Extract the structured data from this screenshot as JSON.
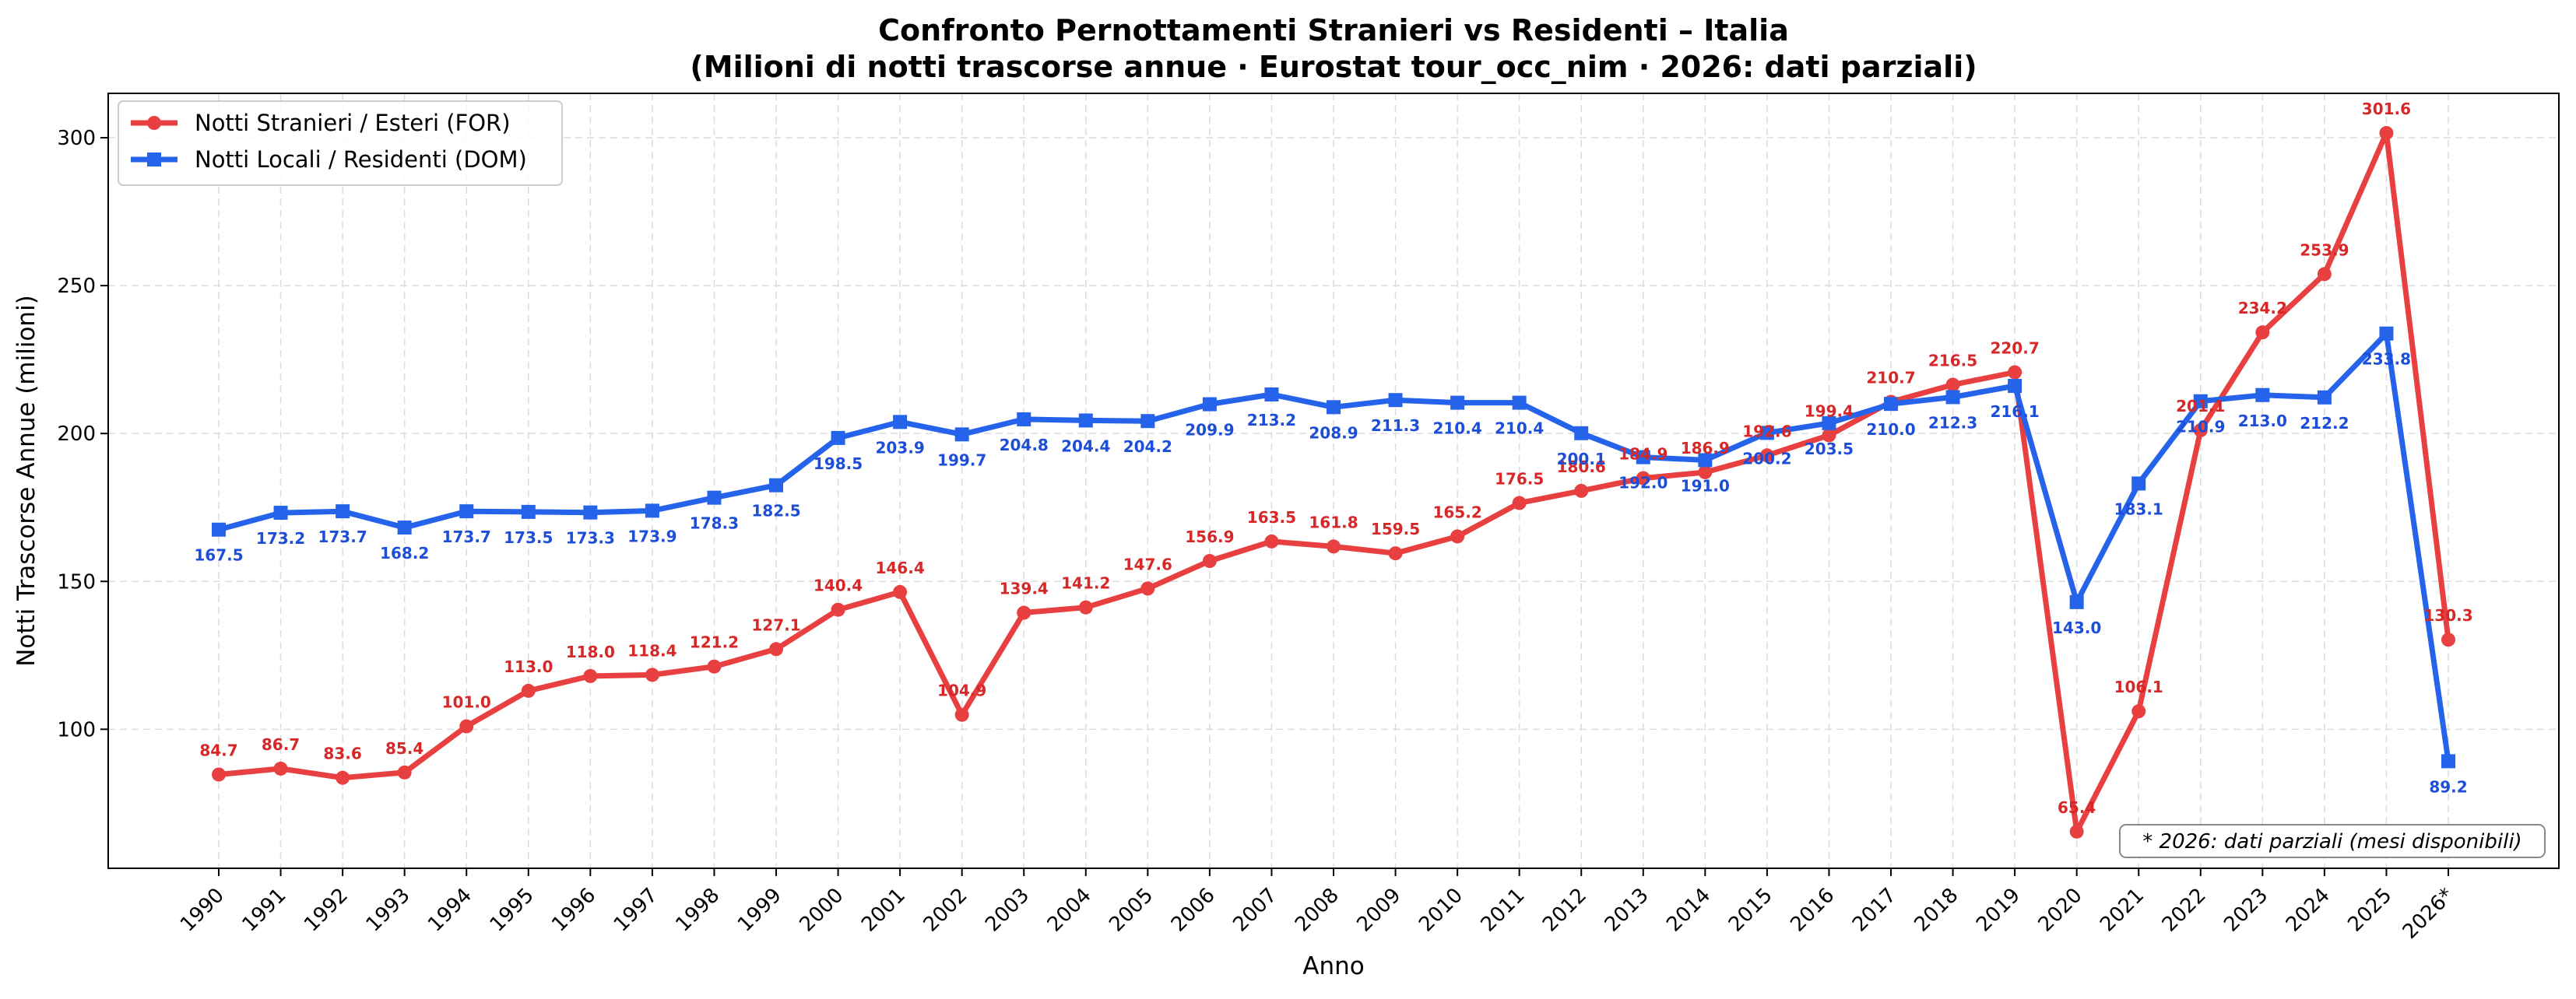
{
  "chart_data": {
    "type": "line",
    "title": "Confronto Pernottamenti Stranieri vs Residenti – Italia",
    "subtitle": "(Milioni di notti trascorse annue · Eurostat tour_occ_nim · 2026: dati parziali)",
    "xlabel": "Anno",
    "ylabel": "Notti Trascorse Annue (milioni)",
    "categories": [
      "1990",
      "1991",
      "1992",
      "1993",
      "1994",
      "1995",
      "1996",
      "1997",
      "1998",
      "1999",
      "2000",
      "2001",
      "2002",
      "2003",
      "2004",
      "2005",
      "2006",
      "2007",
      "2008",
      "2009",
      "2010",
      "2011",
      "2012",
      "2013",
      "2014",
      "2015",
      "2016",
      "2017",
      "2018",
      "2019",
      "2020",
      "2021",
      "2022",
      "2023",
      "2024",
      "2025",
      "2026*"
    ],
    "ylim": [
      53,
      315
    ],
    "yticks": [
      100,
      150,
      200,
      250,
      300
    ],
    "grid": true,
    "legend_position": "top-left",
    "series": [
      {
        "name": "Notti Stranieri / Esteri (FOR)",
        "color": "#e84040",
        "marker": "circle",
        "values": [
          84.7,
          86.7,
          83.6,
          85.4,
          101.0,
          113.0,
          118.0,
          118.4,
          121.2,
          127.1,
          140.4,
          146.4,
          104.9,
          139.4,
          141.2,
          147.6,
          156.9,
          163.5,
          161.8,
          159.5,
          165.2,
          176.5,
          180.6,
          184.9,
          186.9,
          192.6,
          199.4,
          210.7,
          216.5,
          220.7,
          65.4,
          106.1,
          201.1,
          234.2,
          253.9,
          301.6,
          130.3
        ]
      },
      {
        "name": "Notti Locali / Residenti (DOM)",
        "color": "#2563eb",
        "marker": "square",
        "values": [
          167.5,
          173.2,
          173.7,
          168.2,
          173.7,
          173.5,
          173.3,
          173.9,
          178.3,
          182.5,
          198.5,
          203.9,
          199.7,
          204.8,
          204.4,
          204.2,
          209.9,
          213.2,
          208.9,
          211.3,
          210.4,
          210.4,
          200.1,
          192.0,
          191.0,
          200.2,
          203.5,
          210.0,
          212.3,
          216.1,
          143.0,
          183.1,
          210.9,
          213.0,
          212.2,
          233.8,
          89.2
        ]
      }
    ],
    "labels_for": [
      "84.7",
      "86.7",
      "83.6",
      "85.4",
      "101.0",
      "113.0",
      "118.0",
      "118.4",
      "121.2",
      "127.1",
      "140.4",
      "146.4",
      "104.9",
      "139.4",
      "141.2",
      "147.6",
      "156.9",
      "163.5",
      "161.8",
      "159.5",
      "165.2",
      "176.5",
      "180.6",
      "184.9",
      "186.9",
      "192.6",
      "199.4",
      "210.7",
      "216.5",
      "220.7",
      "65.4",
      "106.1",
      "201.1",
      "234.2",
      "253.9",
      "301.6",
      "130.3"
    ],
    "labels_dom": [
      "167.5",
      "173.2",
      "173.7",
      "168.2",
      "173.7",
      "173.5",
      "173.3",
      "173.9",
      "178.3",
      "182.5",
      "198.5",
      "203.9",
      "199.7",
      "204.8",
      "204.4",
      "204.2",
      "209.9",
      "213.2",
      "208.9",
      "211.3",
      "210.4",
      "210.4",
      "200.1",
      "192.0",
      "191.0",
      "200.2",
      "203.5",
      "210.0",
      "212.3",
      "216.1",
      "143.0",
      "183.1",
      "210.9",
      "213.0",
      "212.2",
      "233.8",
      "89.2"
    ],
    "annotation": "* 2026: dati parziali (mesi disponibili)"
  }
}
